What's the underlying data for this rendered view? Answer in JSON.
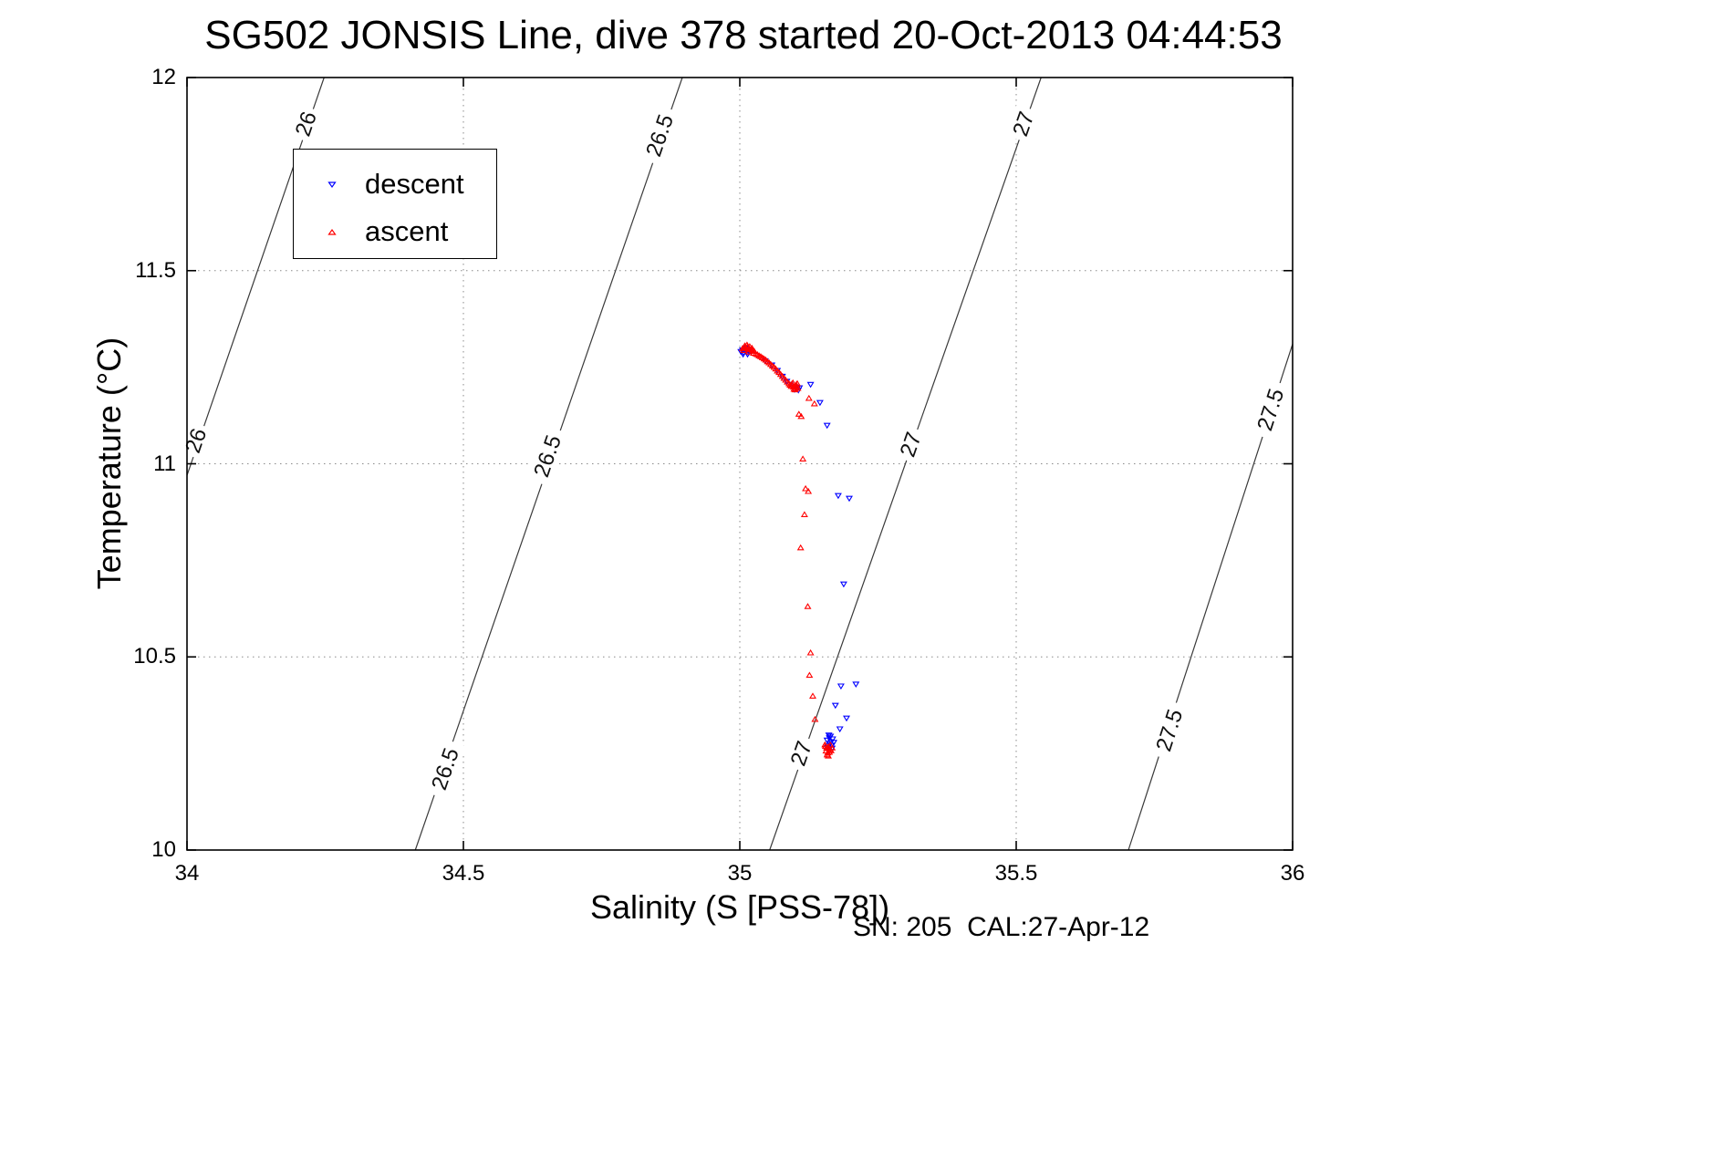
{
  "annotation": "SN: 205  CAL:27-Apr-12",
  "legend": {
    "entries": [
      {
        "label": "descent",
        "color": "#0000ff",
        "marker": "triangle-down"
      },
      {
        "label": "ascent",
        "color": "#ff0000",
        "marker": "triangle-up"
      }
    ]
  },
  "chart_data": {
    "type": "scatter",
    "title": "SG502 JONSIS Line, dive 378 started 20-Oct-2013 04:44:53",
    "xlabel": "Salinity (S [PSS-78])",
    "ylabel": "Temperature (°C)",
    "xlim": [
      34,
      36
    ],
    "ylim": [
      10,
      12
    ],
    "xticks": [
      34,
      34.5,
      35,
      35.5,
      36
    ],
    "yticks": [
      10,
      10.5,
      11,
      11.5,
      12
    ],
    "grid": true,
    "legend_position": "upper-left",
    "contours": [
      {
        "level": "26",
        "line": [
          [
            34.0,
            10.97
          ],
          [
            34.248,
            12.0
          ]
        ],
        "labels": [
          [
            34.016,
            11.06
          ],
          [
            34.215,
            11.88
          ]
        ]
      },
      {
        "level": "26.5",
        "line": [
          [
            34.413,
            10.0
          ],
          [
            34.896,
            12.0
          ]
        ],
        "labels": [
          [
            34.467,
            10.21
          ],
          [
            34.652,
            11.02
          ],
          [
            34.855,
            11.85
          ]
        ]
      },
      {
        "level": "27",
        "line": [
          [
            35.054,
            10.0
          ],
          [
            35.545,
            12.0
          ]
        ],
        "labels": [
          [
            35.111,
            10.25
          ],
          [
            35.309,
            11.05
          ],
          [
            35.513,
            11.88
          ]
        ]
      },
      {
        "level": "27.5",
        "line": [
          [
            35.703,
            10.0
          ],
          [
            36.0,
            11.31
          ]
        ],
        "labels": [
          [
            35.777,
            10.31
          ],
          [
            35.96,
            11.14
          ]
        ]
      }
    ],
    "series": [
      {
        "name": "descent",
        "marker": "triangle-down",
        "color": "#0000ff",
        "points": [
          [
            35.002,
            11.291
          ],
          [
            35.005,
            11.295
          ],
          [
            35.007,
            11.288
          ],
          [
            35.009,
            11.293
          ],
          [
            35.011,
            11.297
          ],
          [
            35.013,
            11.289
          ],
          [
            35.015,
            11.294
          ],
          [
            35.017,
            11.29
          ],
          [
            35.006,
            11.284
          ],
          [
            35.01,
            11.3
          ],
          [
            35.014,
            11.284
          ],
          [
            35.018,
            11.296
          ],
          [
            35.046,
            11.267
          ],
          [
            35.058,
            11.256
          ],
          [
            35.068,
            11.242
          ],
          [
            35.077,
            11.227
          ],
          [
            35.085,
            11.214
          ],
          [
            35.091,
            11.206
          ],
          [
            35.097,
            11.2
          ],
          [
            35.104,
            11.196
          ],
          [
            35.099,
            11.193
          ],
          [
            35.102,
            11.199
          ],
          [
            35.106,
            11.191
          ],
          [
            35.108,
            11.197
          ],
          [
            35.128,
            11.206
          ],
          [
            35.145,
            11.159
          ],
          [
            35.158,
            11.1
          ],
          [
            35.178,
            10.918
          ],
          [
            35.198,
            10.911
          ],
          [
            35.188,
            10.689
          ],
          [
            35.183,
            10.425
          ],
          [
            35.21,
            10.43
          ],
          [
            35.173,
            10.375
          ],
          [
            35.193,
            10.342
          ],
          [
            35.181,
            10.314
          ],
          [
            35.158,
            10.285
          ],
          [
            35.162,
            10.291
          ],
          [
            35.165,
            10.281
          ],
          [
            35.168,
            10.288
          ],
          [
            35.163,
            10.276
          ],
          [
            35.16,
            10.27
          ],
          [
            35.166,
            10.272
          ],
          [
            35.17,
            10.279
          ],
          [
            35.164,
            10.295
          ],
          [
            35.159,
            10.266
          ],
          [
            35.167,
            10.264
          ],
          [
            35.161,
            10.298
          ]
        ]
      },
      {
        "name": "ascent",
        "marker": "triangle-up",
        "color": "#ff0000",
        "points": [
          [
            35.005,
            11.298
          ],
          [
            35.008,
            11.301
          ],
          [
            35.011,
            11.299
          ],
          [
            35.014,
            11.302
          ],
          [
            35.017,
            11.297
          ],
          [
            35.02,
            11.295
          ],
          [
            35.023,
            11.293
          ],
          [
            35.026,
            11.291
          ],
          [
            35.009,
            11.305
          ],
          [
            35.013,
            11.307
          ],
          [
            35.018,
            11.303
          ],
          [
            35.022,
            11.299
          ],
          [
            35.007,
            11.293
          ],
          [
            35.016,
            11.289
          ],
          [
            35.025,
            11.286
          ],
          [
            35.029,
            11.284
          ],
          [
            35.032,
            11.282
          ],
          [
            35.035,
            11.279
          ],
          [
            35.038,
            11.277
          ],
          [
            35.041,
            11.274
          ],
          [
            35.044,
            11.271
          ],
          [
            35.047,
            11.268
          ],
          [
            35.05,
            11.264
          ],
          [
            35.053,
            11.261
          ],
          [
            35.056,
            11.257
          ],
          [
            35.059,
            11.253
          ],
          [
            35.062,
            11.249
          ],
          [
            35.065,
            11.245
          ],
          [
            35.068,
            11.24
          ],
          [
            35.071,
            11.236
          ],
          [
            35.074,
            11.231
          ],
          [
            35.077,
            11.226
          ],
          [
            35.08,
            11.221
          ],
          [
            35.083,
            11.216
          ],
          [
            35.086,
            11.211
          ],
          [
            35.089,
            11.207
          ],
          [
            35.091,
            11.203
          ],
          [
            35.093,
            11.2
          ],
          [
            35.095,
            11.203
          ],
          [
            35.097,
            11.198
          ],
          [
            35.099,
            11.201
          ],
          [
            35.101,
            11.197
          ],
          [
            35.103,
            11.2
          ],
          [
            35.105,
            11.195
          ],
          [
            35.094,
            11.206
          ],
          [
            35.098,
            11.193
          ],
          [
            35.102,
            11.204
          ],
          [
            35.096,
            11.209
          ],
          [
            35.1,
            11.191
          ],
          [
            35.104,
            11.207
          ],
          [
            35.125,
            11.169
          ],
          [
            35.135,
            11.155
          ],
          [
            35.107,
            11.128
          ],
          [
            35.111,
            11.122
          ],
          [
            35.114,
            11.012
          ],
          [
            35.119,
            10.935
          ],
          [
            35.124,
            10.928
          ],
          [
            35.117,
            10.868
          ],
          [
            35.11,
            10.782
          ],
          [
            35.123,
            10.63
          ],
          [
            35.128,
            10.51
          ],
          [
            35.126,
            10.452
          ],
          [
            35.132,
            10.398
          ],
          [
            35.136,
            10.338
          ],
          [
            35.154,
            10.272
          ],
          [
            35.157,
            10.264
          ],
          [
            35.16,
            10.267
          ],
          [
            35.163,
            10.259
          ],
          [
            35.156,
            10.256
          ],
          [
            35.159,
            10.251
          ],
          [
            35.162,
            10.253
          ],
          [
            35.165,
            10.257
          ],
          [
            35.158,
            10.246
          ],
          [
            35.161,
            10.262
          ],
          [
            35.155,
            10.268
          ],
          [
            35.164,
            10.271
          ],
          [
            35.167,
            10.264
          ],
          [
            35.16,
            10.243
          ]
        ]
      }
    ]
  }
}
